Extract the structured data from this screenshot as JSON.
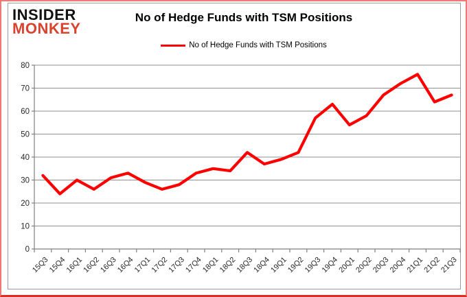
{
  "brand": {
    "line1": "INSIDER",
    "line2": "MONKEY"
  },
  "header": {
    "title": "No of Hedge Funds with TSM Positions"
  },
  "legend": {
    "label": "No of Hedge Funds with TSM Positions",
    "line_color": "#ff0000"
  },
  "colors": {
    "line": "#ff0000",
    "grid": "#8f8f8f",
    "axis_line": "#7f7f7f",
    "axis_text": "#262626",
    "frame_border": "#9b9b9b",
    "page_border": "#ef7a74",
    "page_shadow": "#d93025",
    "brand_black": "#111111",
    "brand_red": "#d9432e",
    "title_text": "#000000"
  },
  "chart_data": {
    "type": "line",
    "title": "No of Hedge Funds with TSM Positions",
    "xlabel": "",
    "ylabel": "",
    "ylim": [
      0,
      80
    ],
    "ytick_interval": 10,
    "grid": "horizontal",
    "legend_position": "top",
    "categories": [
      "15Q3",
      "15Q4",
      "16Q1",
      "16Q2",
      "16Q3",
      "16Q4",
      "17Q1",
      "17Q2",
      "17Q3",
      "17Q4",
      "18Q1",
      "18Q2",
      "18Q3",
      "18Q4",
      "19Q1",
      "19Q2",
      "19Q3",
      "19Q4",
      "20Q1",
      "20Q2",
      "20Q3",
      "20Q4",
      "21Q1",
      "21Q2",
      "21Q3"
    ],
    "series": [
      {
        "name": "No of Hedge Funds with TSM Positions",
        "color": "#ff0000",
        "values": [
          32,
          24,
          30,
          26,
          31,
          33,
          29,
          26,
          28,
          33,
          35,
          34,
          42,
          37,
          39,
          42,
          57,
          63,
          54,
          58,
          67,
          72,
          76,
          64,
          67
        ]
      }
    ]
  }
}
